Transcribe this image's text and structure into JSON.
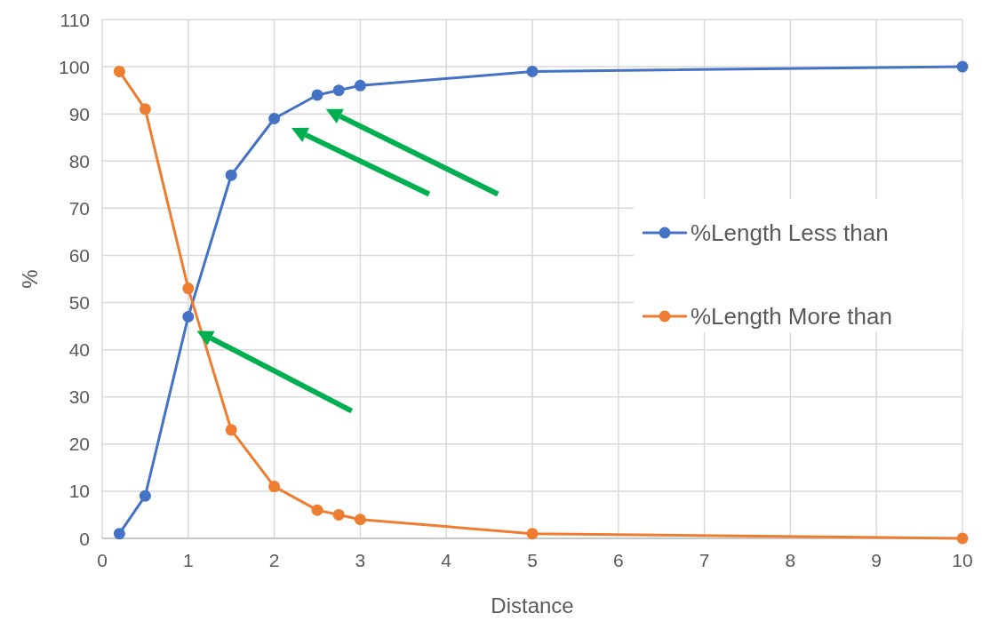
{
  "chart_data": {
    "type": "line",
    "xlabel": "Distance",
    "ylabel": "%",
    "x": [
      0.2,
      0.5,
      1,
      1.5,
      2,
      2.5,
      2.75,
      3,
      5,
      10
    ],
    "series": [
      {
        "name": "%Length Less than",
        "color": "#4472c4",
        "values": [
          1,
          9,
          47,
          77,
          89,
          94,
          95,
          96,
          99,
          100
        ]
      },
      {
        "name": "%Length More than",
        "color": "#ed7d31",
        "values": [
          99,
          91,
          53,
          23,
          11,
          6,
          5,
          4,
          1,
          0
        ]
      }
    ],
    "xlim": [
      0,
      10
    ],
    "xticks": [
      0,
      1,
      2,
      3,
      4,
      5,
      6,
      7,
      8,
      9,
      10
    ],
    "ylim": [
      0,
      110
    ],
    "yticks": [
      0,
      10,
      20,
      30,
      40,
      50,
      60,
      70,
      80,
      90,
      100,
      110
    ],
    "grid": true,
    "legend": "right",
    "marker": "circle",
    "line_style": "solid"
  }
}
